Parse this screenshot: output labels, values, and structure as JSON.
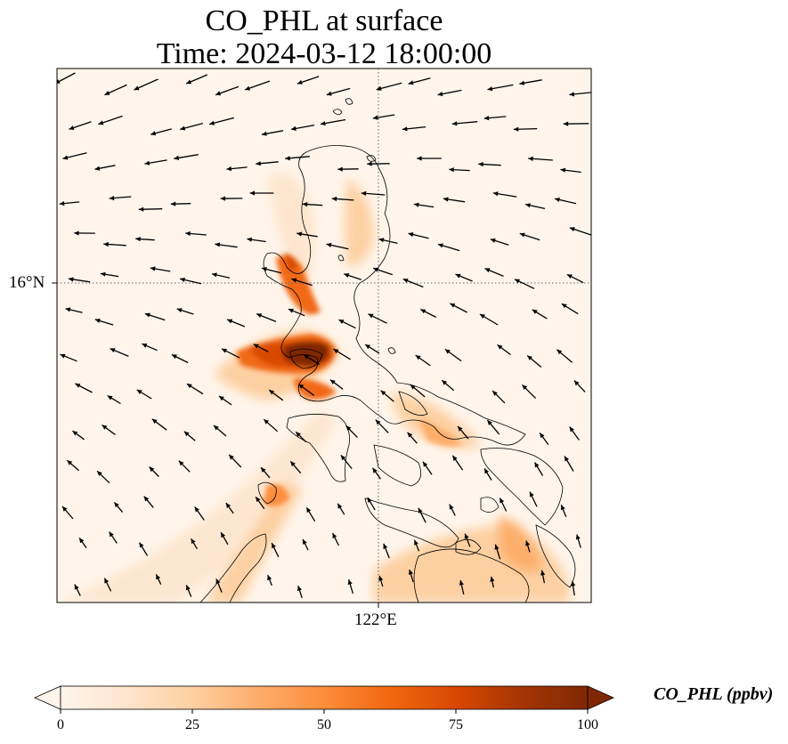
{
  "title": {
    "line1": "CO_PHL at surface",
    "line2": "Time: 2024-03-12 18:00:00"
  },
  "axes": {
    "y_tick": "16°N",
    "x_tick": "122°E"
  },
  "colorbar": {
    "label": "CO_PHL (ppbv)",
    "ticks": [
      "0",
      "25",
      "50",
      "75",
      "100"
    ],
    "min": 0,
    "max": 100,
    "extend": "both",
    "colormap": [
      "#fff5eb",
      "#fee6ce",
      "#fdd0a2",
      "#fdae6b",
      "#fd8d3c",
      "#f16913",
      "#d94801",
      "#a63603",
      "#7f2704"
    ]
  },
  "colors": {
    "background": "#fff5eb",
    "wind_arrow": "#000000",
    "gridline": "#666666"
  }
}
